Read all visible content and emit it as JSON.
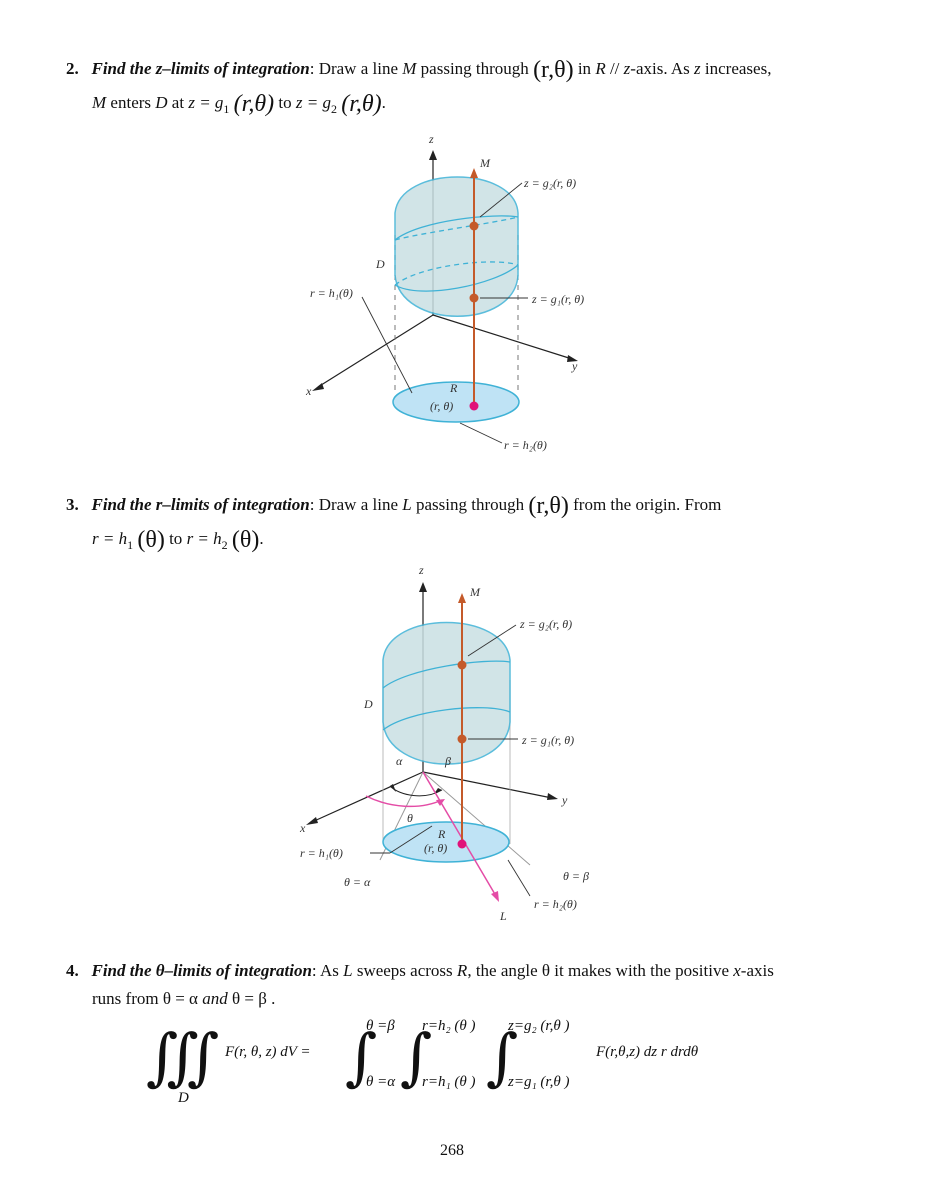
{
  "step2": {
    "number": "2.",
    "title": "Find the z–limits of integration",
    "text1": ": Draw a line ",
    "M": "M",
    "text2": " passing through ",
    "point": "(r,θ)",
    "text3": " in ",
    "R": "R",
    "text4": " // ",
    "zaxis": "z",
    "text5": "-axis. As ",
    "z": "z",
    "text6": " increases,",
    "line2_M": "M",
    "line2_text1": " enters ",
    "line2_D": "D",
    "line2_text2": " at ",
    "eq1": "z = g",
    "eq1_sub": "1",
    "eq1_arg": "(r,θ)",
    "line2_to": " to ",
    "eq2": "z = g",
    "eq2_sub": "2",
    "eq2_arg": "(r,θ)",
    "end": "."
  },
  "figure1": {
    "z": "z",
    "M": "M",
    "g2": "z = g₂(r, θ)",
    "D": "D",
    "h1": "r = h₁(θ)",
    "g1": "z = g₁(r, θ)",
    "y": "y",
    "x": "x",
    "R": "R",
    "rtheta": "(r, θ)",
    "h2": "r = h₂(θ)"
  },
  "step3": {
    "number": "3.",
    "title": "Find the r–limits of integration",
    "text1": ": Draw a line ",
    "L": "L",
    "text2": " passing through ",
    "point": "(r,θ)",
    "text3": " from the origin. From",
    "eq1": "r = h",
    "eq1_sub": "1",
    "eq1_arg": "(θ)",
    "to": " to ",
    "eq2": "r = h",
    "eq2_sub": "2",
    "eq2_arg": "(θ)",
    "end": "."
  },
  "figure2": {
    "z": "z",
    "M": "M",
    "g2": "z = g₂(r, θ)",
    "D": "D",
    "g1": "z = g₁(r, θ)",
    "alpha": "α",
    "beta": "β",
    "y": "y",
    "theta": "θ",
    "x": "x",
    "R": "R",
    "h1": "r = h₁(θ)",
    "rtheta": "(r, θ)",
    "thetaAlpha": "θ = α",
    "thetaBeta": "θ = β",
    "L": "L",
    "h2": "r = h₂(θ)"
  },
  "step4": {
    "number": "4.",
    "title": "Find the θ–limits of integration",
    "text1": ": As ",
    "L": "L",
    "text2": " sweeps across ",
    "R": "R",
    "text3": ", the angle θ it makes with the positive ",
    "x": "x",
    "text4": "-axis",
    "line2": "runs from θ = α",
    "and": " and ",
    "line2b": "θ = β ."
  },
  "formula": {
    "triple": "∭",
    "D": "D",
    "lhs": "F(r, θ, z) dV =",
    "upper1": "θ =β",
    "lower1": "θ =α",
    "upper2": "r=h₂ (θ )",
    "lower2": "r=h₁ (θ )",
    "upper3": "z=g₂ (r,θ )",
    "lower3": "z=g₁ (r,θ )",
    "integrand": "F(r,θ,z) dz r drdθ"
  },
  "page_number": "268",
  "colors": {
    "solid_fill": "#c9e0e3",
    "solid_edge": "#3fb2d6",
    "region_fill": "#bfe3f5",
    "line_M": "#c45a2a",
    "point_dot": "#e0127a",
    "arc_pink": "#e44ca6"
  }
}
